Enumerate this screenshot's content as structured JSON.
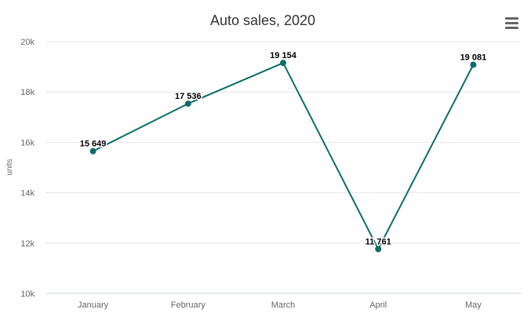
{
  "chart_data": {
    "type": "line",
    "title": "Auto sales, 2020",
    "xlabel": "",
    "ylabel": "units",
    "categories": [
      "January",
      "February",
      "March",
      "April",
      "May"
    ],
    "series": [
      {
        "values": [
          15649,
          17536,
          19154,
          11761,
          19081
        ],
        "data_labels": [
          "15 649",
          "17 536",
          "19 154",
          "11 761",
          "19 081"
        ]
      }
    ],
    "ylim": [
      10000,
      20000
    ],
    "yticks": [
      10000,
      12000,
      14000,
      16000,
      18000,
      20000
    ],
    "ytick_labels": [
      "10k",
      "12k",
      "14k",
      "16k",
      "18k",
      "20k"
    ],
    "grid": true,
    "colors": {
      "line": "#0f6b6b",
      "marker": "#0f6b6b"
    }
  },
  "menu": {
    "icon": "hamburger-menu-icon"
  }
}
